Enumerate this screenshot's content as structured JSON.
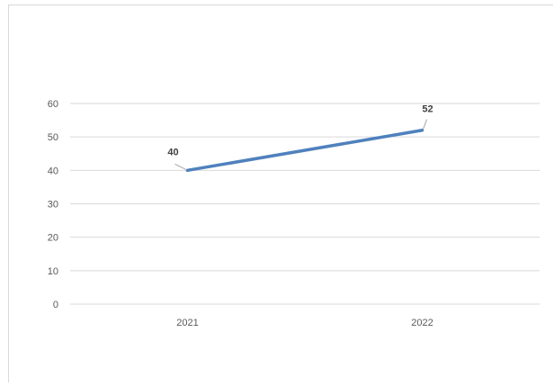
{
  "chart_data": {
    "type": "line",
    "categories": [
      "2021",
      "2022"
    ],
    "series": [
      {
        "values": [
          40,
          52
        ],
        "color": "#4f81bd"
      }
    ],
    "data_labels": [
      "40",
      "52"
    ],
    "ylim": [
      0,
      60
    ],
    "yticks": [
      0,
      10,
      20,
      30,
      40,
      50,
      60
    ],
    "grid": true,
    "legend": "none",
    "colors": {
      "gridline": "#d9d9d9",
      "axis_text": "#595959",
      "label_text": "#404040"
    }
  }
}
